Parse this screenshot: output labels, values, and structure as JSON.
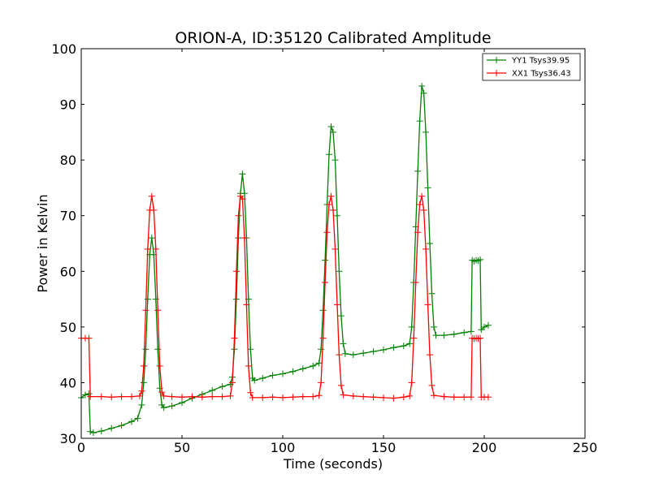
{
  "chart_data": {
    "type": "line",
    "title": "ORION-A, ID:35120 Calibrated Amplitude",
    "xlabel": "Time (seconds)",
    "ylabel": "Power in Kelvin",
    "xlim": [
      0,
      250
    ],
    "ylim": [
      30,
      100
    ],
    "xticks": [
      0,
      50,
      100,
      150,
      200,
      250
    ],
    "yticks": [
      30,
      40,
      50,
      60,
      70,
      80,
      90,
      100
    ],
    "xtick_labels": [
      "0",
      "50",
      "100",
      "150",
      "200",
      "250"
    ],
    "ytick_labels": [
      "30",
      "40",
      "50",
      "60",
      "70",
      "80",
      "90",
      "100"
    ],
    "grid": false,
    "legend": "top-right",
    "marker": "+",
    "series": [
      {
        "name": "YY1 Tsys39.95",
        "color": "#008000",
        "points": [
          [
            0,
            37.3
          ],
          [
            2,
            37.8
          ],
          [
            3.8,
            38.0
          ],
          [
            4.5,
            31.2
          ],
          [
            6,
            31.0
          ],
          [
            10,
            31.3
          ],
          [
            15,
            31.8
          ],
          [
            20,
            32.3
          ],
          [
            25,
            33.0
          ],
          [
            28,
            33.6
          ],
          [
            30,
            36
          ],
          [
            31,
            40
          ],
          [
            32,
            46
          ],
          [
            33,
            55
          ],
          [
            34,
            63
          ],
          [
            35,
            66
          ],
          [
            36,
            63
          ],
          [
            37,
            55
          ],
          [
            38,
            46
          ],
          [
            39,
            39
          ],
          [
            40,
            36.0
          ],
          [
            41,
            35.5
          ],
          [
            45,
            35.8
          ],
          [
            50,
            36.4
          ],
          [
            55,
            37.2
          ],
          [
            60,
            37.9
          ],
          [
            65,
            38.6
          ],
          [
            70,
            39.3
          ],
          [
            74,
            39.7
          ],
          [
            75,
            41
          ],
          [
            76,
            46
          ],
          [
            77,
            55
          ],
          [
            78,
            66
          ],
          [
            79,
            74
          ],
          [
            80,
            77.5
          ],
          [
            81,
            74
          ],
          [
            82,
            66
          ],
          [
            83,
            55
          ],
          [
            84,
            46
          ],
          [
            85,
            40.8
          ],
          [
            86,
            40.4
          ],
          [
            90,
            40.8
          ],
          [
            95,
            41.3
          ],
          [
            100,
            41.6
          ],
          [
            105,
            42.0
          ],
          [
            110,
            42.5
          ],
          [
            115,
            43.0
          ],
          [
            118,
            43.5
          ],
          [
            119,
            46
          ],
          [
            120,
            53
          ],
          [
            121,
            62
          ],
          [
            122,
            72
          ],
          [
            123,
            81
          ],
          [
            124,
            86
          ],
          [
            125,
            85
          ],
          [
            126,
            80
          ],
          [
            127,
            70
          ],
          [
            128,
            60
          ],
          [
            129,
            52
          ],
          [
            130,
            47
          ],
          [
            131,
            45.2
          ],
          [
            135,
            45.0
          ],
          [
            140,
            45.3
          ],
          [
            145,
            45.6
          ],
          [
            150,
            45.9
          ],
          [
            155,
            46.3
          ],
          [
            160,
            46.6
          ],
          [
            163,
            47.0
          ],
          [
            164,
            50
          ],
          [
            165,
            58
          ],
          [
            166,
            68
          ],
          [
            167,
            78
          ],
          [
            168,
            87
          ],
          [
            169,
            93.3
          ],
          [
            170,
            92
          ],
          [
            171,
            85
          ],
          [
            172,
            75
          ],
          [
            173,
            65
          ],
          [
            174,
            56
          ],
          [
            175,
            50
          ],
          [
            176,
            48.5
          ],
          [
            180,
            48.5
          ],
          [
            185,
            48.7
          ],
          [
            190,
            49.0
          ],
          [
            193.5,
            49.2
          ],
          [
            194,
            62
          ],
          [
            195,
            61.8
          ],
          [
            196,
            62.0
          ],
          [
            197,
            61.9
          ],
          [
            198,
            62.1
          ],
          [
            198.5,
            49.5
          ],
          [
            200,
            50.0
          ],
          [
            202,
            50.3
          ]
        ]
      },
      {
        "name": "XX1 Tsys36.43",
        "color": "#ff0000",
        "points": [
          [
            0,
            48.0
          ],
          [
            2,
            48.0
          ],
          [
            3.8,
            48.0
          ],
          [
            4.5,
            37.5
          ],
          [
            10,
            37.5
          ],
          [
            15,
            37.4
          ],
          [
            20,
            37.5
          ],
          [
            25,
            37.5
          ],
          [
            29,
            37.6
          ],
          [
            30,
            38.5
          ],
          [
            31,
            43
          ],
          [
            32,
            53
          ],
          [
            33,
            64
          ],
          [
            34,
            71
          ],
          [
            35,
            73.5
          ],
          [
            36,
            71
          ],
          [
            37,
            64
          ],
          [
            38,
            53
          ],
          [
            39,
            43
          ],
          [
            40,
            38.3
          ],
          [
            41,
            37.6
          ],
          [
            45,
            37.5
          ],
          [
            50,
            37.4
          ],
          [
            55,
            37.5
          ],
          [
            60,
            37.4
          ],
          [
            65,
            37.5
          ],
          [
            70,
            37.5
          ],
          [
            74,
            37.6
          ],
          [
            75,
            40
          ],
          [
            76,
            48
          ],
          [
            77,
            60
          ],
          [
            78,
            70
          ],
          [
            79,
            73.5
          ],
          [
            80,
            73
          ],
          [
            81,
            66
          ],
          [
            82,
            54
          ],
          [
            83,
            43
          ],
          [
            84,
            38.2
          ],
          [
            85,
            37.3
          ],
          [
            90,
            37.3
          ],
          [
            95,
            37.4
          ],
          [
            100,
            37.3
          ],
          [
            105,
            37.4
          ],
          [
            110,
            37.5
          ],
          [
            115,
            37.5
          ],
          [
            118,
            37.7
          ],
          [
            119,
            40
          ],
          [
            120,
            48
          ],
          [
            121,
            58
          ],
          [
            122,
            67
          ],
          [
            123,
            72
          ],
          [
            124,
            73.5
          ],
          [
            125,
            71
          ],
          [
            126,
            64
          ],
          [
            127,
            54
          ],
          [
            128,
            45
          ],
          [
            129,
            39.5
          ],
          [
            130,
            37.8
          ],
          [
            135,
            37.6
          ],
          [
            140,
            37.5
          ],
          [
            145,
            37.4
          ],
          [
            150,
            37.3
          ],
          [
            155,
            37.2
          ],
          [
            160,
            37.4
          ],
          [
            163,
            37.6
          ],
          [
            164,
            40
          ],
          [
            165,
            48
          ],
          [
            166,
            58
          ],
          [
            167,
            67
          ],
          [
            168,
            72
          ],
          [
            169,
            73.5
          ],
          [
            170,
            71
          ],
          [
            171,
            64
          ],
          [
            172,
            54
          ],
          [
            173,
            45
          ],
          [
            174,
            39.5
          ],
          [
            175,
            37.7
          ],
          [
            180,
            37.5
          ],
          [
            185,
            37.4
          ],
          [
            190,
            37.4
          ],
          [
            193.5,
            37.4
          ],
          [
            194,
            48.0
          ],
          [
            195,
            47.9
          ],
          [
            196,
            48.0
          ],
          [
            197,
            47.9
          ],
          [
            198,
            48.0
          ],
          [
            198.5,
            37.4
          ],
          [
            200,
            37.4
          ],
          [
            202,
            37.4
          ]
        ]
      }
    ]
  }
}
